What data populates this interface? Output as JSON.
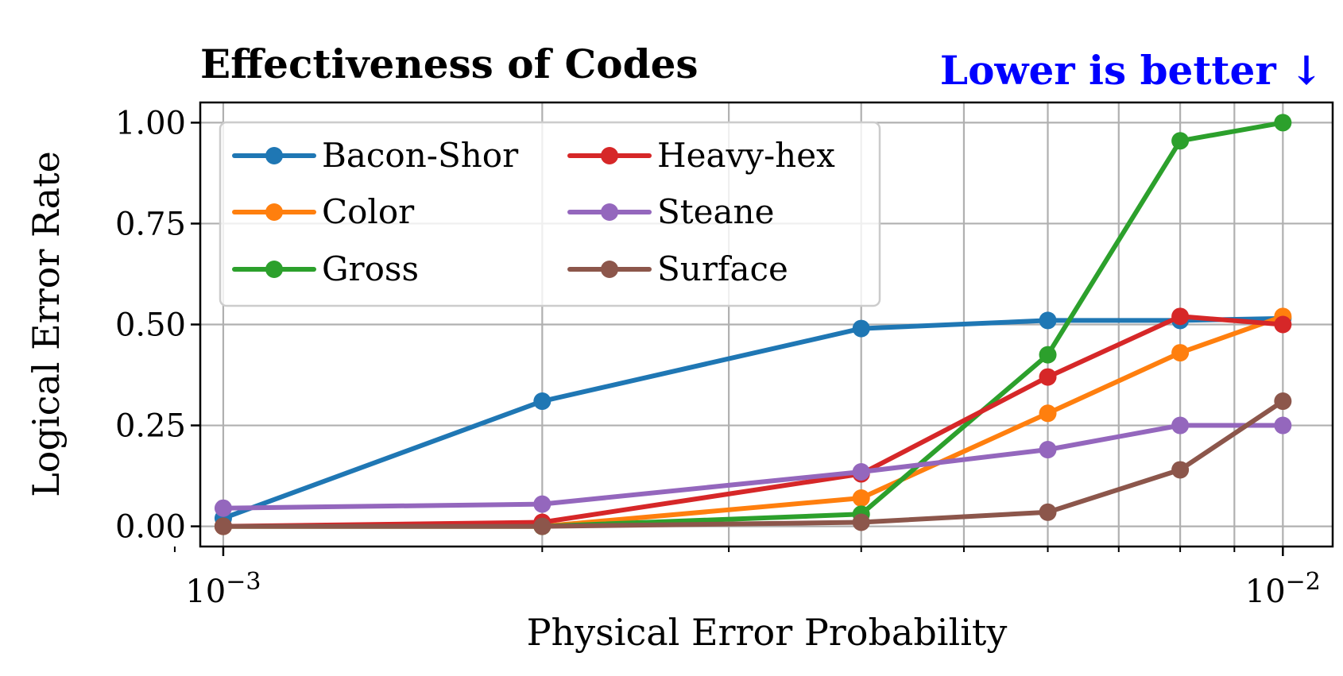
{
  "chart_data": {
    "type": "line",
    "title": "Effectiveness of Codes",
    "annotation": "Lower is better ↓",
    "xlabel": "Physical Error Probability",
    "ylabel": "Logical Error Rate",
    "xscale": "log",
    "x": [
      0.001,
      0.002,
      0.004,
      0.006,
      0.008,
      0.01
    ],
    "x_tick_labels": [
      {
        "value": 0.001,
        "base": "10",
        "exp": "−3"
      },
      {
        "value": 0.01,
        "base": "10",
        "exp": "−2"
      }
    ],
    "yticks": [
      "0.00",
      "0.25",
      "0.50",
      "0.75",
      "1.00"
    ],
    "ylim": [
      -0.05,
      1.05
    ],
    "grid": true,
    "legend_position": "top-left",
    "legend_columns": 2,
    "series": [
      {
        "name": "Bacon-Shor",
        "color": "#1f77b4",
        "values": [
          0.02,
          0.31,
          0.49,
          0.51,
          0.51,
          0.515
        ]
      },
      {
        "name": "Color",
        "color": "#ff7f0e",
        "values": [
          0.0,
          0.0,
          0.07,
          0.28,
          0.43,
          0.52
        ]
      },
      {
        "name": "Gross",
        "color": "#2ca02c",
        "values": [
          0.0,
          0.0,
          0.03,
          0.425,
          0.955,
          1.0
        ]
      },
      {
        "name": "Heavy-hex",
        "color": "#d62728",
        "values": [
          0.0,
          0.01,
          0.13,
          0.37,
          0.52,
          0.5
        ]
      },
      {
        "name": "Steane",
        "color": "#9467bd",
        "values": [
          0.045,
          0.055,
          0.135,
          0.19,
          0.25,
          0.25
        ]
      },
      {
        "name": "Surface",
        "color": "#8c564b",
        "values": [
          0.0,
          0.0,
          0.01,
          0.035,
          0.14,
          0.31
        ]
      }
    ]
  }
}
